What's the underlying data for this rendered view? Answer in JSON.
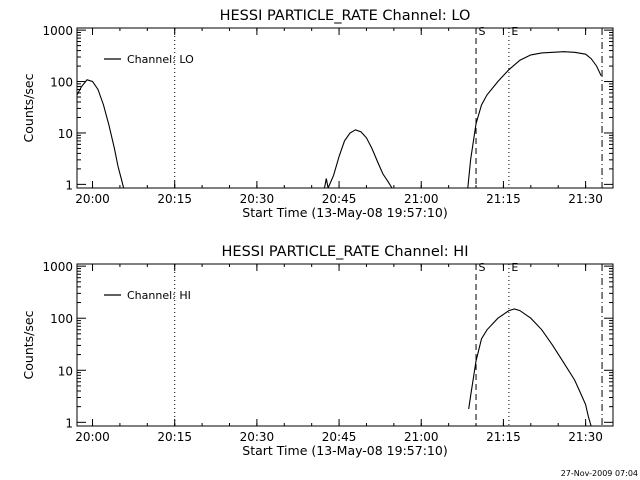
{
  "chart_data": [
    {
      "type": "line",
      "title": "HESSI PARTICLE_RATE Channel: LO",
      "xlabel": "Start Time (13-May-08 19:57:10)",
      "ylabel": "Counts/sec",
      "yscale": "log",
      "ylim": [
        0.85,
        1100
      ],
      "xlim": [
        "19:57:10",
        "21:35:00"
      ],
      "x_ticks": [
        "20:00",
        "20:15",
        "20:30",
        "20:45",
        "21:00",
        "21:15",
        "21:30"
      ],
      "y_ticks": [
        "1",
        "10",
        "100",
        "1000"
      ],
      "legend": {
        "entries": [
          "Channel: LO"
        ],
        "placement": "top-left"
      },
      "markers": [
        {
          "label": "",
          "time": "20:15",
          "style": "dotted"
        },
        {
          "label": "S",
          "time": "21:10",
          "style": "dashed"
        },
        {
          "label": "E",
          "time": "21:16",
          "style": "dotted"
        },
        {
          "label": "",
          "time": "21:33",
          "style": "dash-dot"
        }
      ],
      "segments": [
        {
          "x": [
            "19:57:10",
            "19:58:00",
            "19:59:00",
            "20:00:00",
            "20:01:00",
            "20:02:00",
            "20:03:00",
            "20:04:00",
            "20:04:40",
            "20:05:20",
            "20:05:40"
          ],
          "y": [
            55,
            80,
            108,
            100,
            70,
            35,
            14,
            5,
            2.2,
            1.2,
            0.85
          ]
        },
        {
          "x": [
            "20:42:20",
            "20:42:40",
            "20:43:00",
            "20:44:00",
            "20:45:00",
            "20:46:00",
            "20:47:00",
            "20:48:00",
            "20:49:00",
            "20:50:00",
            "20:51:00",
            "20:52:00",
            "20:53:00",
            "20:54:00",
            "20:54:40"
          ],
          "y": [
            0.85,
            1.3,
            0.85,
            1.5,
            3.5,
            7,
            10,
            11.5,
            10.5,
            8,
            5,
            2.8,
            1.6,
            1.1,
            0.85
          ]
        },
        {
          "x": [
            "21:08:30",
            "21:09:00",
            "21:10:00",
            "21:11:00",
            "21:12:00",
            "21:14:00",
            "21:16:00",
            "21:18:00",
            "21:20:00",
            "21:22:00",
            "21:24:00",
            "21:26:00",
            "21:28:00",
            "21:30:00",
            "21:31:00",
            "21:32:00",
            "21:32:50"
          ],
          "y": [
            0.85,
            3,
            15,
            35,
            55,
            100,
            170,
            260,
            330,
            360,
            370,
            380,
            370,
            340,
            280,
            200,
            130
          ]
        }
      ]
    },
    {
      "type": "line",
      "title": "HESSI PARTICLE_RATE Channel: HI",
      "xlabel": "Start Time (13-May-08 19:57:10)",
      "ylabel": "Counts/sec",
      "yscale": "log",
      "ylim": [
        0.85,
        1100
      ],
      "xlim": [
        "19:57:10",
        "21:35:00"
      ],
      "x_ticks": [
        "20:00",
        "20:15",
        "20:30",
        "20:45",
        "21:00",
        "21:15",
        "21:30"
      ],
      "y_ticks": [
        "1",
        "10",
        "100",
        "1000"
      ],
      "legend": {
        "entries": [
          "Channel: HI"
        ],
        "placement": "top-left"
      },
      "markers": [
        {
          "label": "",
          "time": "20:15",
          "style": "dotted"
        },
        {
          "label": "S",
          "time": "21:10",
          "style": "dashed"
        },
        {
          "label": "E",
          "time": "21:16",
          "style": "dotted"
        },
        {
          "label": "",
          "time": "21:33",
          "style": "dash-dot"
        }
      ],
      "segments": [
        {
          "x": [
            "21:08:40",
            "21:09:00",
            "21:10:00",
            "21:11:00",
            "21:12:00",
            "21:14:00",
            "21:16:00",
            "21:17:00",
            "21:18:00",
            "21:20:00",
            "21:22:00",
            "21:24:00",
            "21:26:00",
            "21:28:00",
            "21:29:00",
            "21:30:00",
            "21:30:30",
            "21:31:00"
          ],
          "y": [
            1.8,
            3.2,
            15,
            40,
            60,
            100,
            140,
            150,
            140,
            100,
            60,
            30,
            14,
            6.5,
            3.8,
            2.2,
            1.3,
            0.85
          ]
        }
      ]
    }
  ],
  "footer": {
    "timestamp": "27-Nov-2009 07:04"
  }
}
